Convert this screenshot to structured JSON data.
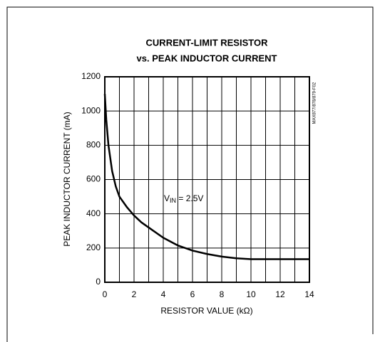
{
  "chart_data": {
    "type": "line",
    "title": "CURRENT-LIMIT RESISTOR",
    "subtitle": "vs. PEAK INDUCTOR CURRENT",
    "xlabel": "RESISTOR VALUE (kΩ)",
    "ylabel": "PEAK INDUCTOR CURRENT (mA)",
    "figure_id": "MAX877/878/879-F02",
    "annotation": {
      "main": "V",
      "sub": "IN",
      "rest": " = 2.5V"
    },
    "x": [
      0,
      0.1,
      0.25,
      0.5,
      0.75,
      1,
      1.5,
      2,
      2.5,
      3,
      4,
      5,
      6,
      7,
      8,
      9,
      10,
      11,
      12,
      13,
      14
    ],
    "series": [
      {
        "name": "VIN = 2.5V",
        "color": "#000000",
        "values": [
          1100,
          950,
          800,
          650,
          560,
          500,
          440,
          390,
          350,
          320,
          260,
          215,
          185,
          165,
          150,
          140,
          135,
          135,
          135,
          135,
          135
        ]
      }
    ],
    "xlim": [
      0,
      14
    ],
    "ylim": [
      0,
      1200
    ],
    "xticks": [
      0,
      2,
      4,
      6,
      8,
      10,
      12,
      14
    ],
    "xminorticks": [
      1,
      3,
      5,
      7,
      9,
      11,
      13
    ],
    "yticks": [
      0,
      200,
      400,
      600,
      800,
      1000,
      1200
    ],
    "grid": true
  }
}
